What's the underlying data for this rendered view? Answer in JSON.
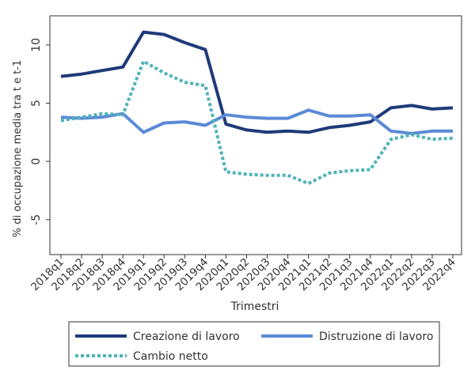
{
  "chart_data": {
    "type": "line",
    "title": "",
    "xlabel": "Trimestri",
    "ylabel": "% di occupazione media tra t e t-1",
    "ylim": [
      -8,
      12.5
    ],
    "yticks": [
      -5,
      0,
      5,
      10
    ],
    "grid": false,
    "legend_position": "bottom",
    "categories": [
      "2018q1",
      "2018q2",
      "2018q3",
      "2018q4",
      "2019q1",
      "2019q2",
      "2019q3",
      "2019q4",
      "2020q1",
      "2020q2",
      "2020q3",
      "2020q4",
      "2021q1",
      "2021q2",
      "2021q3",
      "2021q4",
      "2022q1",
      "2022q2",
      "2022q3",
      "2022q4"
    ],
    "series": [
      {
        "name": "Creazione di lavoro",
        "color": "#1f3a7a",
        "style": "solid",
        "values": [
          7.3,
          7.5,
          7.8,
          8.1,
          11.1,
          10.9,
          10.2,
          9.6,
          3.2,
          2.7,
          2.5,
          2.6,
          2.5,
          2.9,
          3.1,
          3.4,
          4.6,
          4.8,
          4.5,
          4.6
        ]
      },
      {
        "name": "Distruzione di lavoro",
        "color": "#5b8ad6",
        "style": "solid",
        "values": [
          3.8,
          3.7,
          3.8,
          4.1,
          2.5,
          3.3,
          3.4,
          3.1,
          4.0,
          3.8,
          3.7,
          3.7,
          4.4,
          3.9,
          3.9,
          4.0,
          2.6,
          2.4,
          2.6,
          2.6
        ]
      },
      {
        "name": "Cambio netto",
        "color": "#4fb3b8",
        "style": "dotted",
        "values": [
          3.5,
          3.8,
          4.1,
          4.0,
          8.6,
          7.6,
          6.8,
          6.5,
          -0.9,
          -1.1,
          -1.2,
          -1.2,
          -1.9,
          -1.0,
          -0.8,
          -0.7,
          1.9,
          2.3,
          1.9,
          2.0
        ]
      }
    ]
  }
}
